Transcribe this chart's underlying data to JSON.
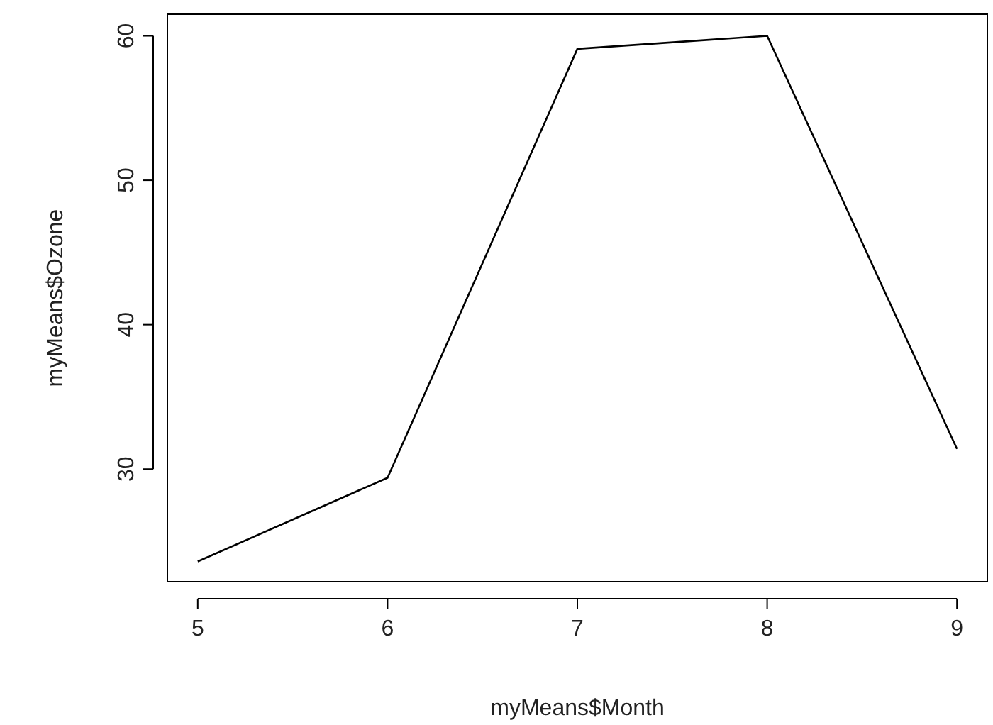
{
  "chart_data": {
    "type": "line",
    "xlabel": "myMeans$Month",
    "ylabel": "myMeans$Ozone",
    "x": [
      5,
      6,
      7,
      8,
      9
    ],
    "series": [
      {
        "color": "#000000",
        "values": [
          23.6,
          29.4,
          59.1,
          60.0,
          31.4
        ]
      }
    ],
    "xlim": [
      4.84,
      9.16
    ],
    "ylim": [
      22.2,
      61.5
    ],
    "xticks": [
      5,
      6,
      7,
      8,
      9
    ],
    "yticks": [
      30,
      40,
      50,
      60
    ],
    "grid": false,
    "marker": "none",
    "line_style": "solid"
  }
}
